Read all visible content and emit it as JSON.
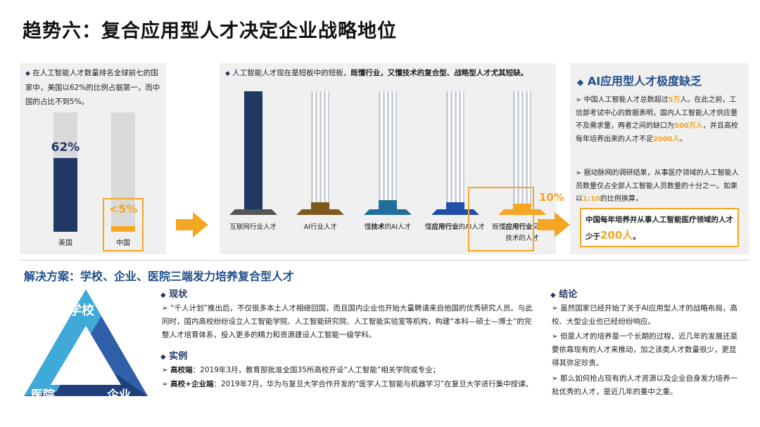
{
  "title": "趋势六：复合应用型人才决定企业战略地位",
  "panel1": {
    "text": "在人工智能人才数量排名全球前七的国家中，美国以62%的比例占据第一，而中国的占比不到5%。",
    "us_label": "美国",
    "us_value": "62%",
    "us_fraction": 0.62,
    "cn_label": "中国",
    "cn_value": "<5%",
    "cn_fraction": 0.05
  },
  "panel2": {
    "text_plain": "人工智能人才现在是短板中的短板，",
    "text_bold": "既懂行业，又懂技术的复合型、战略型人才尤其短缺。",
    "bars": [
      {
        "label": "互联网行业人才",
        "fill": 1.0,
        "color": "#1f3864"
      },
      {
        "label": "AI行业人才",
        "fill": 0.06,
        "color": "#7f5a1e"
      },
      {
        "label": "懂技术的AI人才",
        "fill": 0.08,
        "color": "#1f6e9c"
      },
      {
        "label": "懂应用行业的AI人才",
        "fill": 0.06,
        "color": "#1f4fa8"
      },
      {
        "label": "既懂应用行业又懂AI技术的人才",
        "fill": 0.04,
        "color": "#f5a623"
      }
    ],
    "label_parts": [
      {
        "plain1": "互联网行业人才",
        "bold": "",
        "plain2": ""
      },
      {
        "plain1": "AI行业人才",
        "bold": "",
        "plain2": ""
      },
      {
        "plain1": "懂",
        "bold": "技术",
        "plain2": "的AI人才"
      },
      {
        "plain1": "懂",
        "bold": "应用行业",
        "plain2": "的AI人才"
      },
      {
        "plain1": "既懂",
        "bold": "应用行业",
        "plain2": "又懂AI技术的人才"
      }
    ]
  },
  "ten_percent": "10%",
  "panel3": {
    "heading": "AI应用型人才极度缺乏",
    "p1_a": "中国人工智能人才总数超过",
    "p1_b": "5万",
    "p1_c": "人。在此之前，工信部考试中心的数据表明，国内人工智能人才供应量不及需求量，两者之间的缺口为",
    "p1_d": "500万人",
    "p1_e": "，并且高校每年培养出来的人才不足",
    "p1_f": "2000人",
    "p1_g": "。",
    "p2_a": "据动脉网的调研结果，从事医疗领域的人工智能人员数量仅占全部人工智能人员数量的十分之一。如果以",
    "p2_b": "1:10",
    "p2_c": "的比例换算，",
    "box_a": "中国每年培养并从事人工智能医疗领域的人才少于",
    "box_b": "200人",
    "box_c": "。"
  },
  "solution": {
    "title": "解决方案：学校、企业、医院三端发力培养复合型人才",
    "school": "学校",
    "hospital": "医院",
    "enterprise": "企业",
    "status_head": "现状",
    "status_text": "“千人计划”推出后，不仅很多本土人才相继回国，而且国内企业也开始大量聘请来自他国的优秀研究人员。与此同时，国内高校纷纷设立人工智能学院、人工智能研究院、人工智能实验室等机构，构建“本科—硕士—博士”的完整人才培育体系，投入更多的精力和资源建设人工智能一级学科。",
    "cases_head": "实例",
    "case1_bold": "高校端",
    "case1_text": "：2019年3月，教育部批准全国35所高校开设“人工智能”相关学院或专业；",
    "case2_bold": "高校+企业端",
    "case2_text": "：2019年7月，华为与复旦大学合作开发的“医学人工智能与机器学习”在复旦大学进行集中授课。",
    "conclusion_head": "结论",
    "c1": "虽然国家已经开始了关于AI应用型人才的战略布局，高校、大型企业也已经纷纷响应。",
    "c2": "但是人才的培养是一个长期的过程，近几年的发展还是要依靠现有的人才来推动，加之该类人才数量很少，更显得其弥足珍贵。",
    "c3": "那么如何抢占现有的人才资源以及企业自身发力培养一批优秀的人才，是近几年的重中之重。"
  },
  "colors": {
    "navy": "#1f3864",
    "orange": "#f5a623",
    "blue": "#1f4e8c",
    "teal": "#2a9fd6",
    "darkblue": "#1c5aa6",
    "lightblue": "#3fa9d8"
  }
}
